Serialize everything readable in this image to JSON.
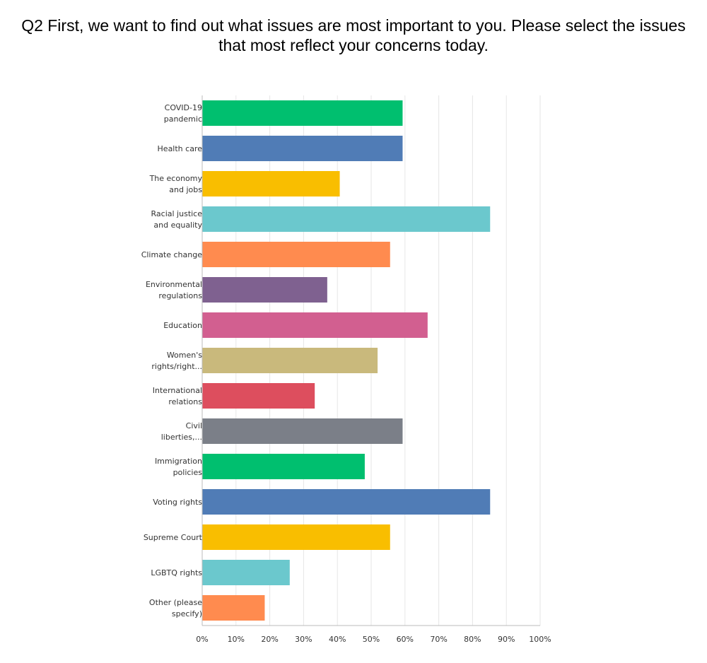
{
  "title": "Q2 First, we want to find out what issues are most important to you. Please select the issues that most reflect your concerns today.",
  "chart_data": {
    "type": "bar",
    "orientation": "horizontal",
    "title": "Q2 First, we want to find out what issues are most important to you. Please select the issues that most reflect your concerns today.",
    "xlabel": "",
    "ylabel": "",
    "xlim": [
      0,
      100
    ],
    "x_ticks": [
      "0%",
      "10%",
      "20%",
      "30%",
      "40%",
      "50%",
      "60%",
      "70%",
      "80%",
      "90%",
      "100%"
    ],
    "grid": true,
    "categories": [
      [
        "COVID-19",
        "pandemic"
      ],
      [
        "Health care"
      ],
      [
        "The economy",
        "and jobs"
      ],
      [
        "Racial justice",
        "and equality"
      ],
      [
        "Climate change"
      ],
      [
        "Environmental",
        "regulations"
      ],
      [
        "Education"
      ],
      [
        "Women's",
        "rights/right..."
      ],
      [
        "International",
        "relations"
      ],
      [
        "Civil",
        "liberties,..."
      ],
      [
        "Immigration",
        "policies"
      ],
      [
        "Voting rights"
      ],
      [
        "Supreme Court"
      ],
      [
        "LGBTQ rights"
      ],
      [
        "Other (please",
        "specify)"
      ]
    ],
    "values": [
      59.3,
      59.3,
      40.7,
      85.2,
      55.6,
      37.0,
      66.7,
      51.9,
      33.3,
      59.3,
      48.1,
      85.2,
      55.6,
      25.9,
      18.5
    ],
    "colors": [
      "#00bf6f",
      "#507cb6",
      "#f9be00",
      "#6bc8cd",
      "#ff8b4f",
      "#7f6190",
      "#d25f90",
      "#c9b97c",
      "#dd4e5e",
      "#7b7f88",
      "#00bf6f",
      "#507cb6",
      "#f9be00",
      "#6bc8cd",
      "#ff8b4f"
    ]
  }
}
